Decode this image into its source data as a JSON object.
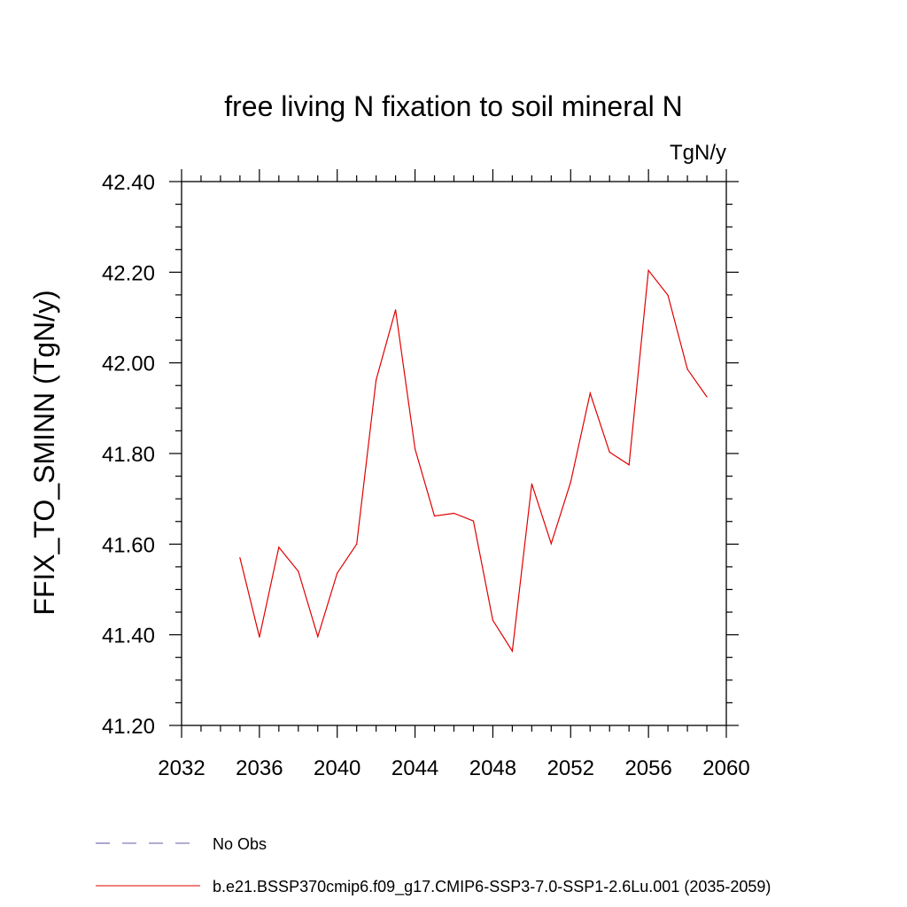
{
  "chart_data": {
    "type": "line",
    "title": "free living N fixation to soil mineral N",
    "units": "TgN/y",
    "ylabel": "FFIX_TO_SMINN  (TgN/y)",
    "xlabel": "",
    "xlim": [
      2032,
      2060
    ],
    "ylim": [
      41.2,
      42.4
    ],
    "x_ticks": [
      2032,
      2036,
      2040,
      2044,
      2048,
      2052,
      2056,
      2060
    ],
    "y_ticks": [
      41.2,
      41.4,
      41.6,
      41.8,
      42.0,
      42.2,
      42.4
    ],
    "x_tick_labels": [
      "2032",
      "2036",
      "2040",
      "2044",
      "2048",
      "2052",
      "2056",
      "2060"
    ],
    "y_tick_labels": [
      "41.20",
      "41.40",
      "41.60",
      "41.80",
      "42.00",
      "42.20",
      "42.40"
    ],
    "grid": false,
    "legend_position": "bottom",
    "series": [
      {
        "name": "b.e21.BSSP370cmip6.f09_g17.CMIP6-SSP3-7.0-SSP1-2.6Lu.001 (2035-2059)",
        "color": "#e00000",
        "style": "solid",
        "x": [
          2035,
          2036,
          2037,
          2038,
          2039,
          2040,
          2041,
          2042,
          2043,
          2044,
          2045,
          2046,
          2047,
          2048,
          2049,
          2050,
          2051,
          2052,
          2053,
          2054,
          2055,
          2056,
          2057,
          2058,
          2059
        ],
        "y": [
          41.57,
          41.395,
          41.593,
          41.54,
          41.396,
          41.536,
          41.6,
          41.962,
          42.117,
          41.81,
          41.662,
          41.668,
          41.651,
          41.432,
          41.364,
          41.733,
          41.601,
          41.737,
          41.933,
          41.803,
          41.775,
          42.204,
          42.149,
          41.986,
          41.925
        ]
      }
    ],
    "legend": [
      {
        "label": "No Obs",
        "color": "#6b5aa6",
        "style": "dashed"
      },
      {
        "label": "b.e21.BSSP370cmip6.f09_g17.CMIP6-SSP3-7.0-SSP1-2.6Lu.001 (2035-2059)",
        "color": "#e00000",
        "style": "solid"
      }
    ]
  }
}
